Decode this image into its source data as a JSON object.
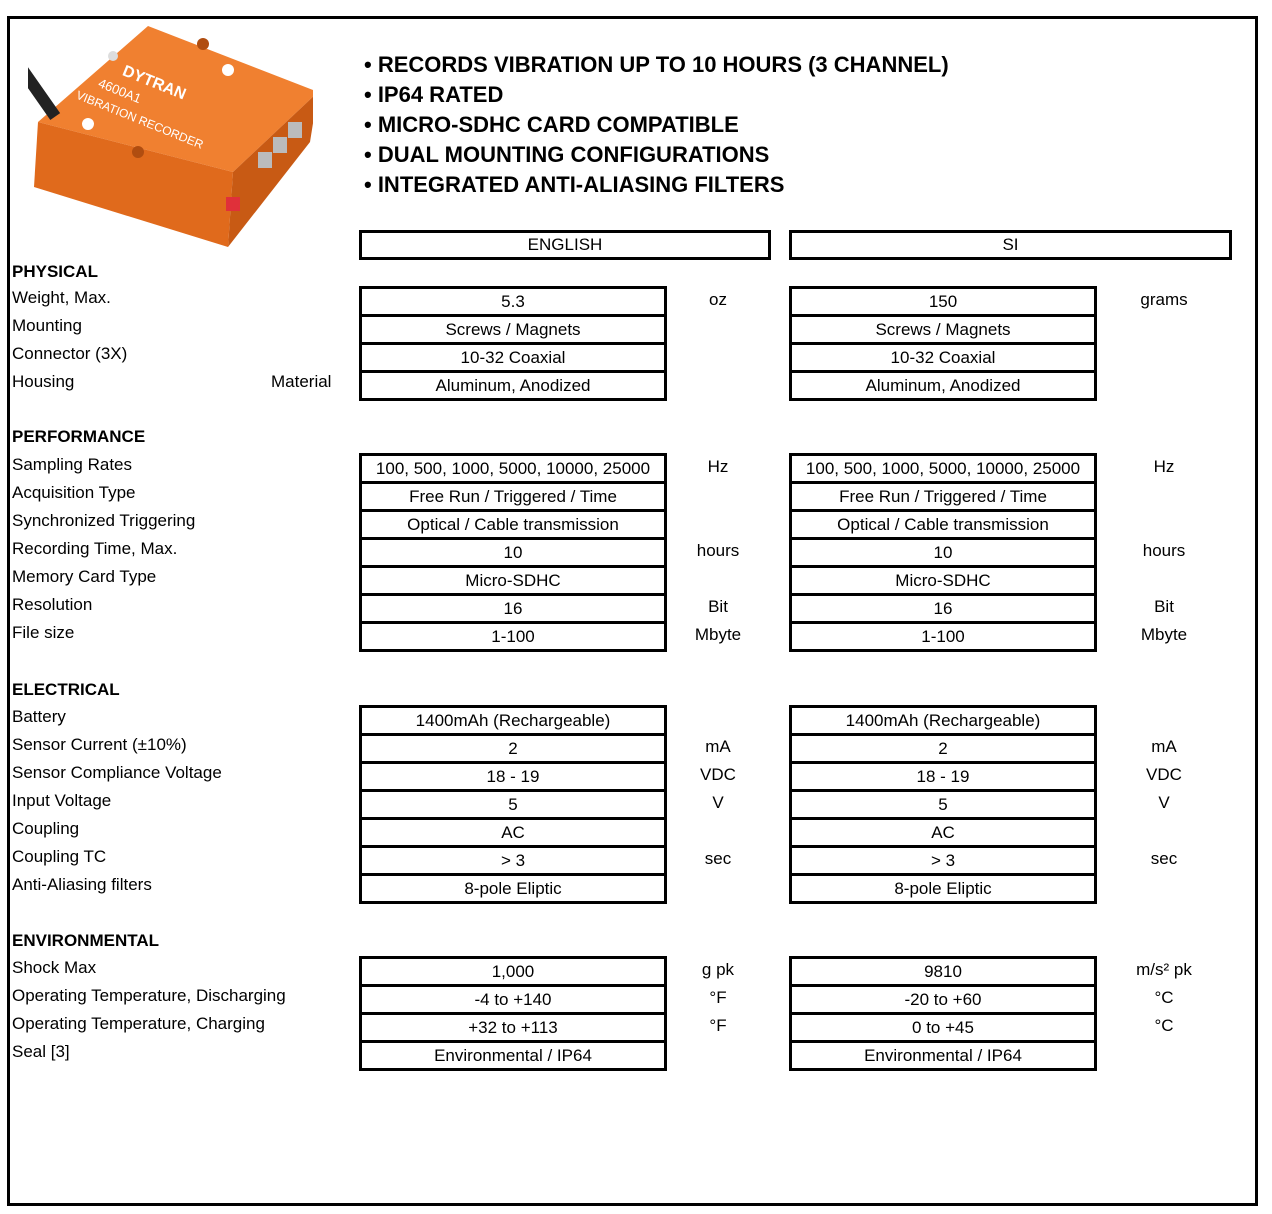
{
  "product": {
    "logo": "DYTRAN",
    "model": "4600A1",
    "name": "VIBRATION RECORDER",
    "color": "#ee7324"
  },
  "bullets": [
    "• RECORDS VIBRATION UP TO 10 HOURS (3 CHANNEL)",
    "• IP64 RATED",
    "• MICRO-SDHC CARD COMPATIBLE",
    "• DUAL MOUNTING CONFIGURATIONS",
    "• INTEGRATED ANTI-ALIASING FILTERS"
  ],
  "headers": {
    "english": "ENGLISH",
    "si": "SI"
  },
  "sections": [
    {
      "title": "PHYSICAL",
      "rows": [
        {
          "label": "Weight, Max.",
          "en": "5.3",
          "en_unit": "oz",
          "si": "150",
          "si_unit": "grams"
        },
        {
          "label": "Mounting",
          "en": "Screws / Magnets",
          "en_unit": "",
          "si": "Screws / Magnets",
          "si_unit": ""
        },
        {
          "label": "Connector (3X)",
          "en": "10-32 Coaxial",
          "en_unit": "",
          "si": "10-32 Coaxial",
          "si_unit": ""
        },
        {
          "label": "Housing",
          "sublabel": "Material",
          "en": "Aluminum, Anodized",
          "en_unit": "",
          "si": "Aluminum, Anodized",
          "si_unit": ""
        }
      ]
    },
    {
      "title": "PERFORMANCE",
      "rows": [
        {
          "label": "Sampling Rates",
          "en": "100, 500, 1000, 5000, 10000, 25000",
          "en_unit": "Hz",
          "si": "100, 500, 1000, 5000, 10000, 25000",
          "si_unit": "Hz"
        },
        {
          "label": "Acquisition Type",
          "en": "Free Run / Triggered / Time",
          "en_unit": "",
          "si": "Free Run / Triggered / Time",
          "si_unit": ""
        },
        {
          "label": "Synchronized Triggering",
          "en": "Optical / Cable transmission",
          "en_unit": "",
          "si": "Optical / Cable transmission",
          "si_unit": ""
        },
        {
          "label": "Recording Time, Max.",
          "en": "10",
          "en_unit": "hours",
          "si": "10",
          "si_unit": "hours"
        },
        {
          "label": "Memory Card Type",
          "en": "Micro-SDHC",
          "en_unit": "",
          "si": "Micro-SDHC",
          "si_unit": ""
        },
        {
          "label": "Resolution",
          "en": "16",
          "en_unit": "Bit",
          "si": "16",
          "si_unit": "Bit"
        },
        {
          "label": "File size",
          "en": "1-100",
          "en_unit": "Mbyte",
          "si": "1-100",
          "si_unit": "Mbyte"
        }
      ]
    },
    {
      "title": "ELECTRICAL",
      "rows": [
        {
          "label": "Battery",
          "en": "1400mAh (Rechargeable)",
          "en_unit": "",
          "si": "1400mAh (Rechargeable)",
          "si_unit": ""
        },
        {
          "label": "Sensor Current (±10%)",
          "en": "2",
          "en_unit": "mA",
          "si": "2",
          "si_unit": "mA"
        },
        {
          "label": "Sensor Compliance Voltage",
          "en": "18 - 19",
          "en_unit": "VDC",
          "si": "18 - 19",
          "si_unit": "VDC"
        },
        {
          "label": "Input Voltage",
          "en": "5",
          "en_unit": "V",
          "si": "5",
          "si_unit": "V"
        },
        {
          "label": "Coupling",
          "en": "AC",
          "en_unit": "",
          "si": "AC",
          "si_unit": ""
        },
        {
          "label": "Coupling TC",
          "en": "> 3",
          "en_unit": "sec",
          "si": "> 3",
          "si_unit": "sec"
        },
        {
          "label": "Anti-Aliasing filters",
          "en": "8-pole Eliptic",
          "en_unit": "",
          "si": "8-pole Eliptic",
          "si_unit": ""
        }
      ]
    },
    {
      "title": "ENVIRONMENTAL",
      "rows": [
        {
          "label": "Shock Max",
          "en": "1,000",
          "en_unit": "g pk",
          "si": "9810",
          "si_unit": "m/s² pk"
        },
        {
          "label": "Operating Temperature, Discharging",
          "en": "-4 to +140",
          "en_unit": "°F",
          "si": "-20 to +60",
          "si_unit": "°C"
        },
        {
          "label": "Operating Temperature, Charging",
          "en": "+32 to +113",
          "en_unit": "°F",
          "si": "0 to +45",
          "si_unit": "°C"
        },
        {
          "label": "Seal [3]",
          "en": "Environmental / IP64",
          "en_unit": "",
          "si": "Environmental / IP64",
          "si_unit": ""
        }
      ]
    }
  ]
}
